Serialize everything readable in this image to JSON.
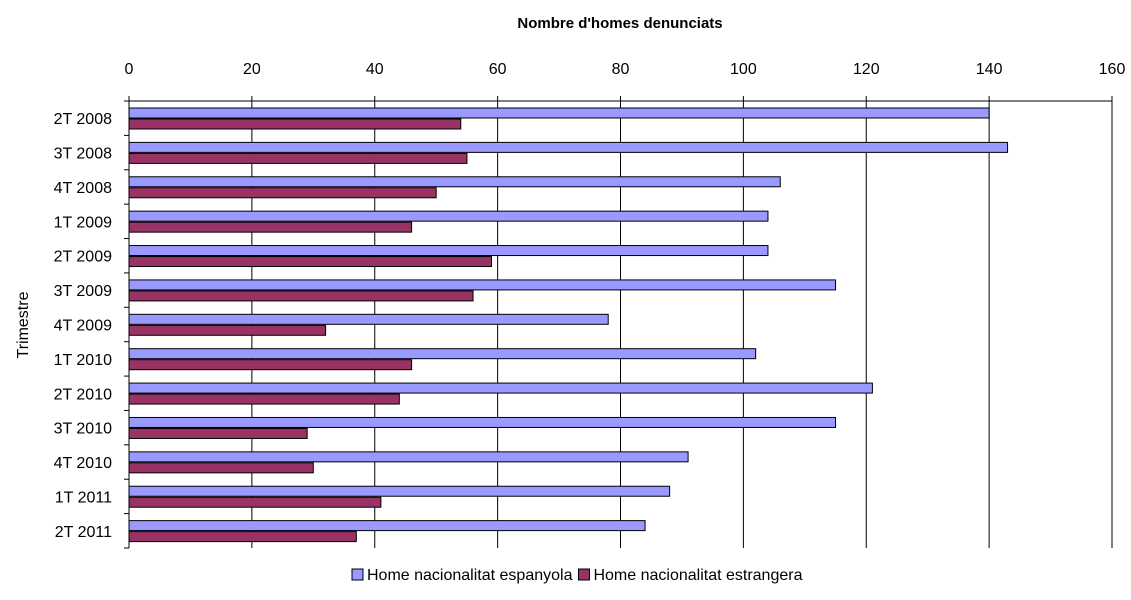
{
  "chart_data": {
    "type": "bar",
    "orientation": "horizontal",
    "xlabel": "Nombre d'homes denunciats",
    "ylabel": "Trimestre",
    "xlim": [
      0,
      160
    ],
    "x_ticks": [
      "0",
      "20",
      "40",
      "60",
      "80",
      "100",
      "120",
      "140",
      "160"
    ],
    "x_axis_position": "top",
    "grid": "vertical",
    "legend_position": "bottom",
    "categories": [
      "2T 2008",
      "3T 2008",
      "4T 2008",
      "1T 2009",
      "2T 2009",
      "3T 2009",
      "4T 2009",
      "1T 2010",
      "2T 2010",
      "3T 2010",
      "4T 2010",
      "1T 2011",
      "2T 2011"
    ],
    "series": [
      {
        "name": "Home nacionalitat espanyola",
        "color": "#9999ff",
        "values": [
          140,
          143,
          106,
          104,
          104,
          115,
          78,
          102,
          121,
          115,
          91,
          88,
          84
        ]
      },
      {
        "name": "Home nacionalitat estrangera",
        "color": "#993366",
        "values": [
          54,
          55,
          50,
          46,
          59,
          56,
          32,
          46,
          44,
          29,
          30,
          41,
          37
        ]
      }
    ]
  }
}
